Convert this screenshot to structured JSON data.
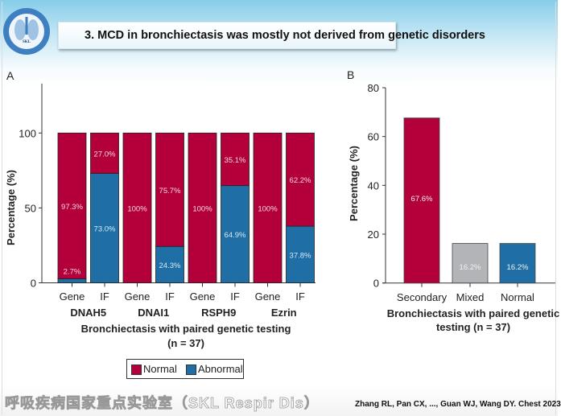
{
  "header": {
    "title": "3.  MCD in bronchiectasis was mostly not derived from genetic disorders",
    "logo_text": "SKL Respir Dis"
  },
  "colors": {
    "normal": "#b3003b",
    "abnormal": "#1f6fa6",
    "mixed": "#b2b4b8"
  },
  "chart_data": [
    {
      "type": "bar",
      "stacked": true,
      "panel_label": "A",
      "ylabel": "Percentage (%)",
      "xlabel": "Bronchiectasis with paired genetic testing",
      "xlabel_n": "(n = 37)",
      "ylim": [
        0,
        133
      ],
      "yticks": [
        0,
        50,
        100
      ],
      "categories": [
        "Gene",
        "IF",
        "Gene",
        "IF",
        "Gene",
        "IF",
        "Gene",
        "IF"
      ],
      "groups": [
        "DNAH5",
        "DNAI1",
        "RSPH9",
        "Ezrin"
      ],
      "series": [
        {
          "name": "Abnormal",
          "values": [
            2.7,
            73.0,
            0,
            24.3,
            0,
            64.9,
            0,
            37.8
          ],
          "labels": [
            "2.7%",
            "73.0%",
            "",
            "24.3%",
            "",
            "64.9%",
            "",
            "37.8%"
          ]
        },
        {
          "name": "Normal",
          "values": [
            97.3,
            27.0,
            100,
            75.7,
            100,
            35.1,
            100,
            62.2
          ],
          "labels": [
            "97.3%",
            "27.0%",
            "100%",
            "75.7%",
            "100%",
            "35.1%",
            "100%",
            "62.2%"
          ]
        }
      ],
      "legend": {
        "position": "bottom",
        "entries": [
          "Normal",
          "Abnormal"
        ]
      }
    },
    {
      "type": "bar",
      "panel_label": "B",
      "ylabel": "Percentage (%)",
      "xlabel": "Bronchiectasis with paired genetic",
      "xlabel2": "testing (n = 37)",
      "ylim": [
        0,
        80
      ],
      "yticks": [
        0,
        20,
        40,
        60,
        80
      ],
      "categories": [
        "Secondary",
        "Mixed",
        "Normal"
      ],
      "values": [
        67.6,
        16.2,
        16.2
      ],
      "labels": [
        "67.6%",
        "16.2%",
        "16.2%"
      ]
    }
  ],
  "footer": {
    "watermark": "呼吸疾病国家重点实验室（SKL Respir Dis）",
    "citation": "Zhang RL, Pan CX, ..., Guan WJ, Wang DY. Chest 2023"
  }
}
